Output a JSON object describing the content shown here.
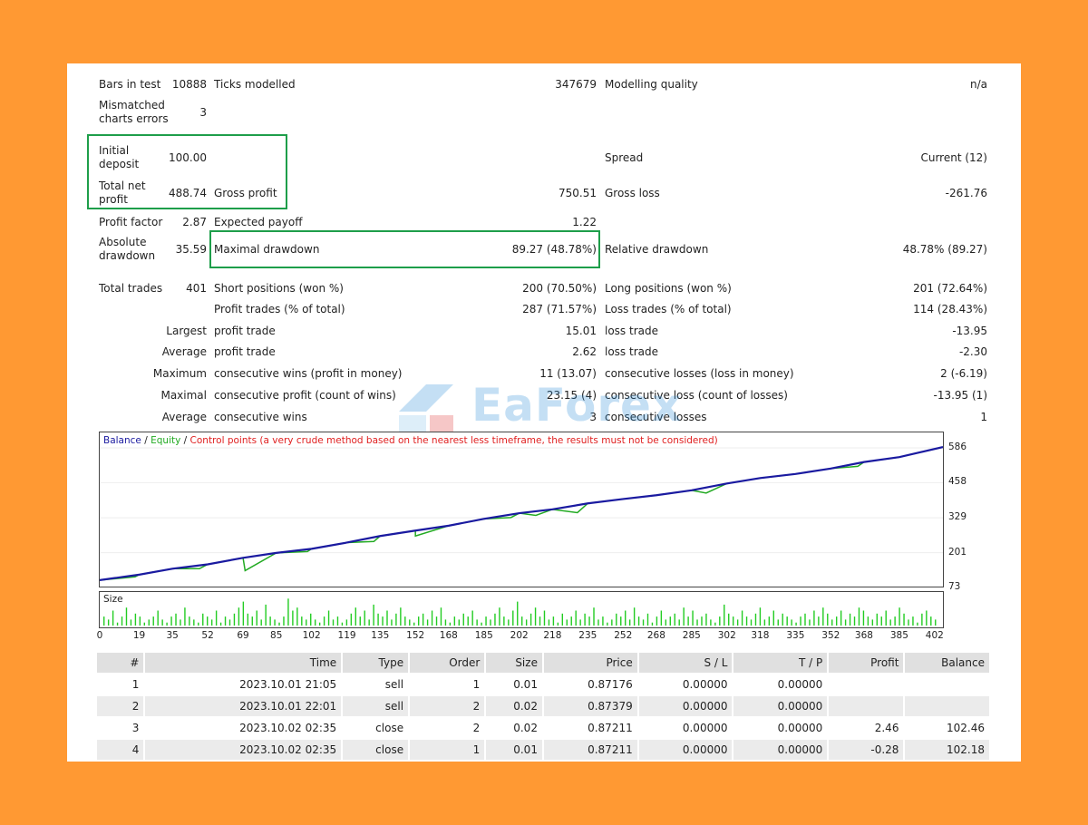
{
  "stats": {
    "bars_in_test_label": "Bars in test",
    "bars_in_test": "10888",
    "ticks_modelled_label": "Ticks modelled",
    "ticks_modelled": "347679",
    "modelling_quality_label": "Modelling quality",
    "modelling_quality": "n/a",
    "mismatched_label": "Mismatched charts errors",
    "mismatched": "3",
    "initial_deposit_label": "Initial deposit",
    "initial_deposit": "100.00",
    "spread_label": "Spread",
    "spread": "Current (12)",
    "total_net_profit_label": "Total net profit",
    "total_net_profit": "488.74",
    "gross_profit_label": "Gross profit",
    "gross_profit": "750.51",
    "gross_loss_label": "Gross loss",
    "gross_loss": "-261.76",
    "profit_factor_label": "Profit factor",
    "profit_factor": "2.87",
    "expected_payoff_label": "Expected payoff",
    "expected_payoff": "1.22",
    "absolute_drawdown_label": "Absolute drawdown",
    "absolute_drawdown": "35.59",
    "maximal_drawdown_label": "Maximal drawdown",
    "maximal_drawdown": "89.27 (48.78%)",
    "relative_drawdown_label": "Relative drawdown",
    "relative_drawdown": "48.78% (89.27)",
    "total_trades_label": "Total trades",
    "total_trades": "401",
    "short_positions_label": "Short positions (won %)",
    "short_positions": "200 (70.50%)",
    "long_positions_label": "Long positions (won %)",
    "long_positions": "201 (72.64%)",
    "profit_trades_label": "Profit trades (% of total)",
    "profit_trades": "287 (71.57%)",
    "loss_trades_label": "Loss trades (% of total)",
    "loss_trades": "114 (28.43%)",
    "largest_label": "Largest",
    "largest_profit_label": "profit trade",
    "largest_profit": "15.01",
    "largest_loss_label": "loss trade",
    "largest_loss": "-13.95",
    "average_label": "Average",
    "average_profit_label": "profit trade",
    "average_profit": "2.62",
    "average_loss_label": "loss trade",
    "average_loss": "-2.30",
    "maximum_label": "Maximum",
    "max_cons_wins_label": "consecutive wins (profit in money)",
    "max_cons_wins": "11 (13.07)",
    "max_cons_losses_label": "consecutive losses (loss in money)",
    "max_cons_losses": "2 (-6.19)",
    "maximal_label": "Maximal",
    "maximal_cons_profit_label": "consecutive profit (count of wins)",
    "maximal_cons_profit": "23.15 (4)",
    "maximal_cons_loss_label": "consecutive loss (count of losses)",
    "maximal_cons_loss": "-13.95 (1)",
    "average2_label": "Average",
    "avg_cons_wins_label": "consecutive wins",
    "avg_cons_wins": "3",
    "avg_cons_losses_label": "consecutive losses",
    "avg_cons_losses": "1"
  },
  "watermark": {
    "text": "EaForex"
  },
  "chart": {
    "legend_balance": "Balance",
    "legend_sep1": " / ",
    "legend_equity": "Equity",
    "legend_sep2": " / ",
    "legend_control": "Control points (a very crude method based on the nearest less timeframe, the results must not be considered)",
    "size_label": "Size",
    "colors": {
      "balance": "#1a1aa0",
      "equity": "#22aa22",
      "control": "#e02020",
      "size": "#22cc22"
    }
  },
  "chart_data": {
    "type": "line",
    "y_ticks": [
      "586",
      "458",
      "329",
      "201",
      "73"
    ],
    "ylim": [
      73,
      586
    ],
    "x_ticks": [
      "0",
      "19",
      "35",
      "52",
      "69",
      "85",
      "102",
      "119",
      "135",
      "152",
      "168",
      "185",
      "202",
      "218",
      "235",
      "252",
      "268",
      "285",
      "302",
      "318",
      "335",
      "352",
      "368",
      "385",
      "402"
    ],
    "xlim": [
      0,
      406
    ],
    "series": [
      {
        "name": "Balance",
        "x": [
          0,
          19,
          35,
          52,
          69,
          85,
          102,
          119,
          135,
          152,
          168,
          185,
          202,
          218,
          235,
          252,
          268,
          285,
          302,
          318,
          335,
          352,
          368,
          385,
          406
        ],
        "y": [
          100,
          120,
          142,
          158,
          182,
          200,
          215,
          238,
          262,
          282,
          300,
          325,
          346,
          360,
          382,
          398,
          412,
          430,
          455,
          475,
          490,
          510,
          534,
          552,
          589
        ]
      }
    ],
    "equity_dips": [
      {
        "x": 17,
        "y": 112
      },
      {
        "x": 48,
        "y": 142
      },
      {
        "x": 70,
        "y": 135
      },
      {
        "x": 100,
        "y": 205
      },
      {
        "x": 132,
        "y": 242
      },
      {
        "x": 152,
        "y": 262
      },
      {
        "x": 198,
        "y": 330
      },
      {
        "x": 210,
        "y": 338
      },
      {
        "x": 230,
        "y": 348
      },
      {
        "x": 292,
        "y": 420
      },
      {
        "x": 365,
        "y": 518
      }
    ],
    "size_bars": [
      0.3,
      0.2,
      0.5,
      0.1,
      0.3,
      0.6,
      0.2,
      0.4,
      0.3,
      0.1,
      0.2,
      0.3,
      0.5,
      0.2,
      0.1,
      0.3,
      0.4,
      0.2,
      0.6,
      0.3,
      0.2,
      0.1,
      0.4,
      0.3,
      0.2,
      0.5,
      0.1,
      0.3,
      0.2,
      0.4,
      0.6,
      0.8,
      0.4,
      0.3,
      0.5,
      0.2,
      0.7,
      0.3,
      0.2,
      0.1,
      0.3,
      0.9,
      0.5,
      0.6,
      0.3,
      0.2,
      0.4,
      0.2,
      0.1,
      0.3,
      0.5,
      0.2,
      0.3,
      0.1,
      0.2,
      0.4,
      0.6,
      0.3,
      0.5,
      0.2,
      0.7,
      0.4,
      0.3,
      0.5,
      0.2,
      0.4,
      0.6,
      0.3,
      0.2,
      0.1,
      0.3,
      0.4,
      0.2,
      0.5,
      0.3,
      0.6,
      0.2,
      0.1,
      0.3,
      0.2,
      0.4,
      0.3,
      0.5,
      0.2,
      0.1,
      0.3,
      0.2,
      0.4,
      0.6,
      0.3,
      0.2,
      0.5,
      0.8,
      0.3,
      0.2,
      0.4,
      0.6,
      0.3,
      0.5,
      0.2,
      0.3,
      0.1,
      0.4,
      0.2,
      0.3,
      0.5,
      0.2,
      0.4,
      0.3,
      0.6,
      0.2,
      0.3,
      0.1,
      0.2,
      0.4,
      0.3,
      0.5,
      0.2,
      0.6,
      0.3,
      0.2,
      0.4,
      0.1,
      0.3,
      0.5,
      0.2,
      0.3,
      0.4,
      0.2,
      0.6,
      0.3,
      0.5,
      0.2,
      0.3,
      0.4,
      0.2,
      0.1,
      0.3,
      0.7,
      0.4,
      0.3,
      0.2,
      0.5,
      0.3,
      0.2,
      0.4,
      0.6,
      0.2,
      0.3,
      0.5,
      0.2,
      0.4,
      0.3,
      0.2,
      0.1,
      0.3,
      0.4,
      0.2,
      0.5,
      0.3,
      0.6,
      0.4,
      0.2,
      0.3,
      0.5,
      0.2,
      0.4,
      0.3,
      0.6,
      0.5,
      0.3,
      0.2,
      0.4,
      0.3,
      0.5,
      0.2,
      0.3,
      0.6,
      0.4,
      0.2,
      0.3,
      0.1,
      0.4,
      0.5,
      0.3,
      0.2
    ]
  },
  "deals": {
    "headers": [
      "#",
      "Time",
      "Type",
      "Order",
      "Size",
      "Price",
      "S / L",
      "T / P",
      "Profit",
      "Balance"
    ],
    "rows": [
      [
        "1",
        "2023.10.01 21:05",
        "sell",
        "1",
        "0.01",
        "0.87176",
        "0.00000",
        "0.00000",
        "",
        ""
      ],
      [
        "2",
        "2023.10.01 22:01",
        "sell",
        "2",
        "0.02",
        "0.87379",
        "0.00000",
        "0.00000",
        "",
        ""
      ],
      [
        "3",
        "2023.10.02 02:35",
        "close",
        "2",
        "0.02",
        "0.87211",
        "0.00000",
        "0.00000",
        "2.46",
        "102.46"
      ],
      [
        "4",
        "2023.10.02 02:35",
        "close",
        "1",
        "0.01",
        "0.87211",
        "0.00000",
        "0.00000",
        "-0.28",
        "102.18"
      ]
    ]
  }
}
